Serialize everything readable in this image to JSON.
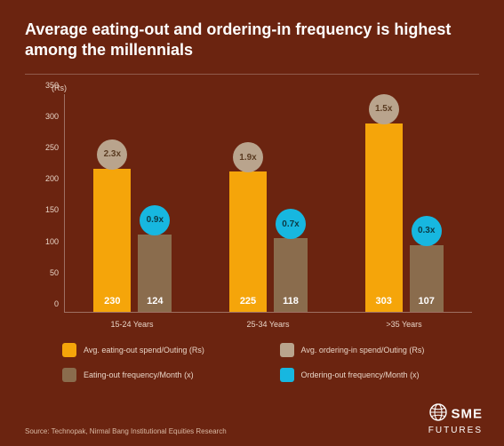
{
  "title": "Average eating-out and ordering-in frequency is highest among the millennials",
  "y_unit": "(Rs)",
  "chart": {
    "type": "bar",
    "y_max": 350,
    "y_ticks": [
      0,
      50,
      100,
      150,
      200,
      250,
      300,
      350
    ],
    "categories": [
      "15-24 Years",
      "25-34 Years",
      ">35 Years"
    ],
    "series": {
      "eating_spend": {
        "values": [
          230,
          225,
          303
        ],
        "color": "#f5a50a"
      },
      "ordering_spend": {
        "values": [
          124,
          118,
          107
        ],
        "color": "#8a6c4d"
      },
      "eating_freq": {
        "badges": [
          "2.3x",
          "1.9x",
          "1.5x"
        ],
        "color": "#b9a48d",
        "text": "#5b3c22"
      },
      "ordering_freq": {
        "badges": [
          "0.9x",
          "0.7x",
          "0.3x"
        ],
        "color": "#17b7e0",
        "text": "#0c3a45"
      }
    }
  },
  "legend": [
    {
      "label": "Avg. eating-out spend/Outing (Rs)",
      "color": "#f5a50a"
    },
    {
      "label": "Avg. ordering-in spend/Outing (Rs)",
      "color": "#b9a48d"
    },
    {
      "label": "Eating-out frequency/Month (x)",
      "color": "#8a6c4d"
    },
    {
      "label": "Ordering-out frequency/Month (x)",
      "color": "#17b7e0"
    }
  ],
  "source": "Source: Technopak, Nirmal Bang Institutional Equities Research",
  "logo": {
    "top": "SME",
    "bottom": "FUTURES"
  },
  "background_color": "#6b2410"
}
